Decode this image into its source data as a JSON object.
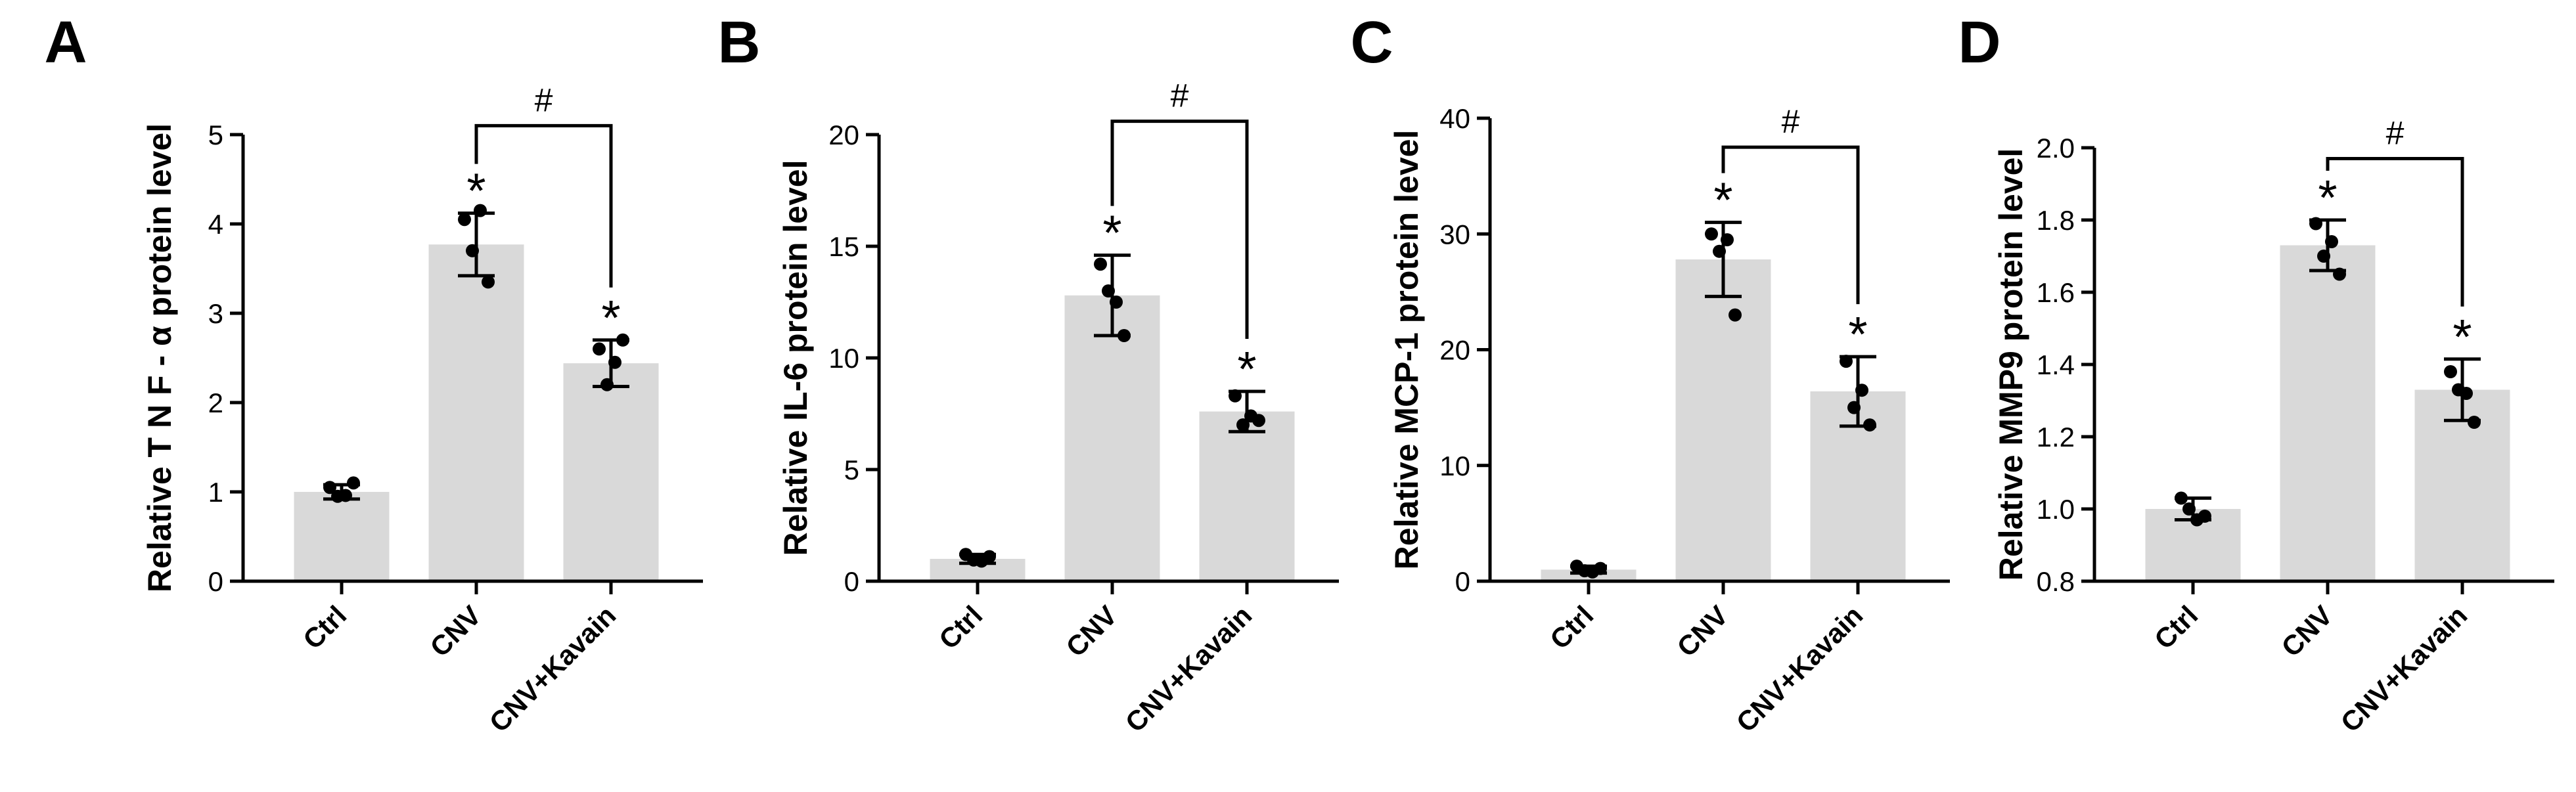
{
  "chart_data": [
    {
      "type": "bar",
      "panel": "A",
      "ylabel": "Relative T N F - α protein level",
      "categories": [
        "Ctrl",
        "CNV",
        "CNV+Kavain"
      ],
      "values": [
        1.0,
        3.77,
        2.44
      ],
      "errors": [
        0.08,
        0.35,
        0.26
      ],
      "points": [
        [
          1.05,
          0.96,
          0.95,
          1.1
        ],
        [
          4.05,
          4.15,
          3.7,
          3.35
        ],
        [
          2.6,
          2.45,
          2.2,
          2.7
        ]
      ],
      "color": "#d9d9d9",
      "ylim": [
        0,
        5
      ],
      "yticks": [
        0,
        1,
        2,
        3,
        4,
        5
      ],
      "annotations": [
        {
          "category": "CNV",
          "text": "*"
        },
        {
          "category": "CNV+Kavain",
          "text": "*"
        }
      ],
      "bracket": {
        "from": "CNV",
        "to": "CNV+Kavain",
        "y": 5.1,
        "text": "#"
      }
    },
    {
      "type": "bar",
      "panel": "B",
      "ylabel": "Relative IL-6 protein level",
      "categories": [
        "Ctrl",
        "CNV",
        "CNV+Kavain"
      ],
      "values": [
        1.0,
        12.8,
        7.6
      ],
      "errors": [
        0.2,
        1.8,
        0.9
      ],
      "points": [
        [
          1.2,
          0.9,
          0.95,
          1.1
        ],
        [
          14.2,
          12.5,
          13.0,
          11.0
        ],
        [
          8.3,
          7.4,
          7.0,
          7.2
        ]
      ],
      "color": "#d9d9d9",
      "ylim": [
        0,
        20
      ],
      "yticks": [
        0,
        5,
        10,
        15,
        20
      ],
      "annotations": [
        {
          "category": "CNV",
          "text": "*"
        },
        {
          "category": "CNV+Kavain",
          "text": "*"
        }
      ],
      "bracket": {
        "from": "CNV",
        "to": "CNV+Kavain",
        "y": 20.6,
        "text": "#"
      }
    },
    {
      "type": "bar",
      "panel": "C",
      "ylabel": "Relative MCP-1 protein level",
      "categories": [
        "Ctrl",
        "CNV",
        "CNV+Kavain"
      ],
      "values": [
        1.0,
        27.8,
        16.4
      ],
      "errors": [
        0.3,
        3.2,
        3.0
      ],
      "points": [
        [
          1.3,
          0.8,
          0.9,
          1.1
        ],
        [
          30.0,
          29.5,
          28.5,
          23.0
        ],
        [
          19.0,
          16.5,
          15.0,
          13.5
        ]
      ],
      "color": "#d9d9d9",
      "ylim": [
        0,
        40
      ],
      "yticks": [
        0,
        10,
        20,
        30,
        40
      ],
      "annotations": [
        {
          "category": "CNV",
          "text": "*"
        },
        {
          "category": "CNV+Kavain",
          "text": "*"
        }
      ],
      "bracket": {
        "from": "CNV",
        "to": "CNV+Kavain",
        "y": 37.5,
        "text": "#"
      }
    },
    {
      "type": "bar",
      "panel": "D",
      "ylabel": "Relative MMP9 protein level",
      "categories": [
        "Ctrl",
        "CNV",
        "CNV+Kavain"
      ],
      "values": [
        1.0,
        1.73,
        1.33
      ],
      "errors": [
        0.03,
        0.07,
        0.085
      ],
      "points": [
        [
          1.03,
          0.97,
          1.0,
          0.98
        ],
        [
          1.79,
          1.74,
          1.7,
          1.65
        ],
        [
          1.38,
          1.32,
          1.33,
          1.24
        ]
      ],
      "color": "#d9d9d9",
      "ylim": [
        0.8,
        2.0
      ],
      "yticks": [
        0.8,
        {
          "value": 1,
          "label": "1.0"
        },
        1.2,
        1.4,
        1.6,
        1.8,
        {
          "value": 2,
          "label": "2.0"
        }
      ],
      "annotations": [
        {
          "category": "CNV",
          "text": "*"
        },
        {
          "category": "CNV+Kavain",
          "text": "*"
        }
      ],
      "bracket": {
        "from": "CNV",
        "to": "CNV+Kavain",
        "y": 1.97,
        "text": "#"
      }
    }
  ]
}
